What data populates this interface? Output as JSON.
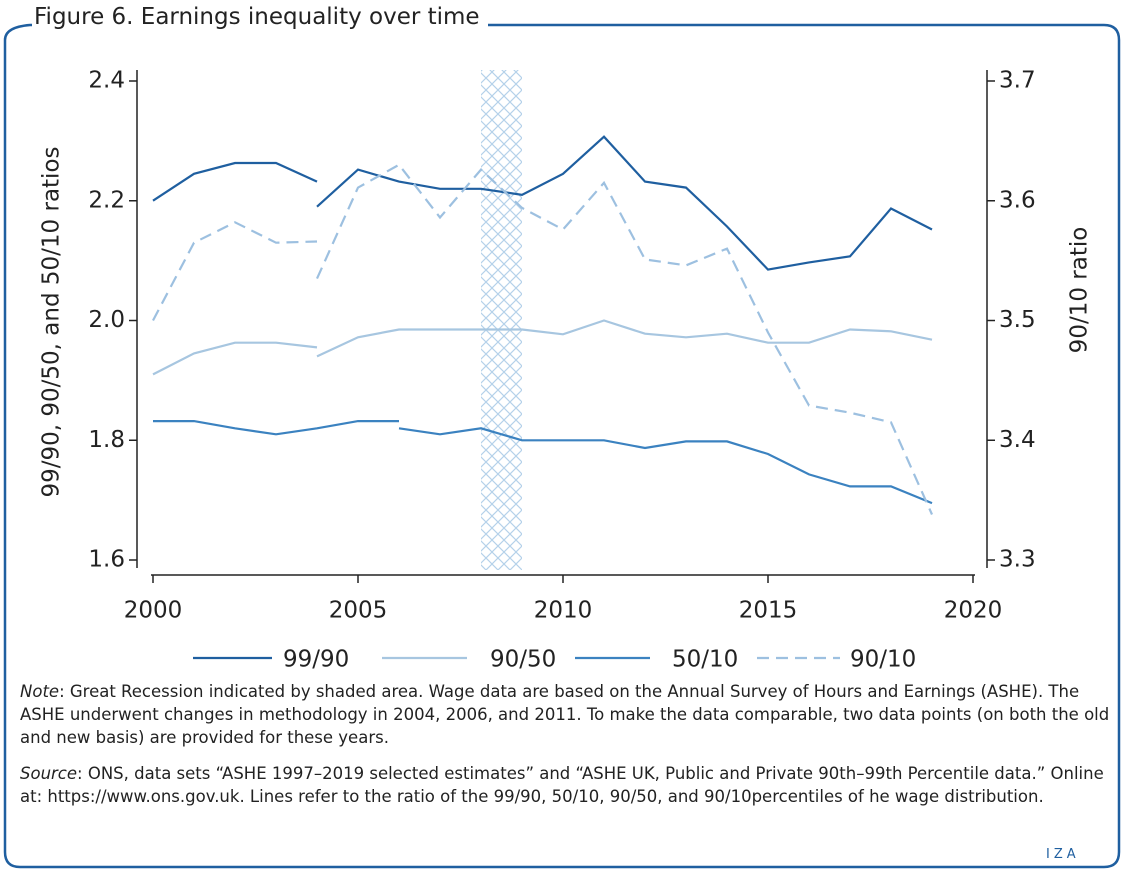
{
  "chart_data": {
    "type": "line",
    "title": "Figure 6. Earnings inequality over time",
    "ylabel": "99/90, 90/50, and 50/10 ratios",
    "y2label": "90/10 ratio",
    "xlim": [
      2000,
      2020
    ],
    "xticks": [
      2000,
      2005,
      2010,
      2015,
      2020
    ],
    "ylim": [
      1.6,
      2.4
    ],
    "yticks": [
      {
        "value": 1.6,
        "label": "1.6"
      },
      {
        "value": 1.8,
        "label": "1.8"
      },
      {
        "value": 2.0,
        "label": "2.0"
      },
      {
        "value": 2.2,
        "label": "2.2"
      },
      {
        "value": 2.4,
        "label": "2.4"
      }
    ],
    "y2lim": [
      3.3,
      3.7
    ],
    "y2ticks": [
      3.3,
      3.4,
      3.5,
      3.6,
      3.7
    ],
    "recession": [
      2008,
      2009
    ],
    "series": [
      {
        "name": "99/90",
        "color": "#1f5fa0",
        "dash": false,
        "x": [
          2000,
          2001,
          2002,
          2003,
          2004,
          null,
          2004,
          2005,
          2006,
          2007,
          2008,
          2009,
          2010,
          2011,
          2012,
          2013,
          2014,
          2015,
          2016,
          2017,
          2018,
          2019
        ],
        "values": [
          2.2,
          2.245,
          2.263,
          2.263,
          2.232,
          null,
          2.19,
          2.252,
          2.232,
          2.22,
          2.22,
          2.21,
          2.245,
          2.307,
          2.232,
          2.222,
          2.157,
          2.085,
          2.097,
          2.107,
          2.187,
          2.152
        ]
      },
      {
        "name": "90/50",
        "color": "#a7c6e0",
        "dash": false,
        "x": [
          2000,
          2001,
          2002,
          2003,
          2004,
          null,
          2004,
          2005,
          2006,
          2007,
          2008,
          2009,
          2010,
          2011,
          2012,
          2013,
          2014,
          2015,
          2016,
          2017,
          2018,
          2019
        ],
        "values": [
          1.91,
          1.945,
          1.963,
          1.963,
          1.955,
          null,
          1.94,
          1.972,
          1.985,
          1.985,
          1.985,
          1.985,
          1.977,
          2.0,
          1.978,
          1.972,
          1.978,
          1.963,
          1.963,
          1.985,
          1.982,
          1.968
        ]
      },
      {
        "name": "50/10",
        "color": "#3b82c0",
        "dash": false,
        "x": [
          2000,
          2001,
          2002,
          2003,
          2004,
          2005,
          2006,
          null,
          2006,
          2007,
          2008,
          2009,
          2010,
          2011,
          2012,
          2013,
          2014,
          2015,
          2016,
          2017,
          2018,
          2019
        ],
        "values": [
          1.832,
          1.832,
          1.82,
          1.81,
          1.82,
          1.832,
          1.832,
          null,
          1.82,
          1.81,
          1.82,
          1.8,
          1.8,
          1.8,
          1.787,
          1.798,
          1.798,
          1.777,
          1.743,
          1.723,
          1.723,
          1.695
        ]
      },
      {
        "name": "90/10",
        "color": "#9dc0e0",
        "dash": true,
        "axis": "y2",
        "x": [
          2000,
          2001,
          2002,
          2003,
          2004,
          null,
          2004,
          2005,
          2006,
          2007,
          2008,
          2009,
          2010,
          2011,
          2012,
          2013,
          2014,
          2015,
          2016,
          2017,
          2018,
          2019
        ],
        "values": [
          3.5,
          3.565,
          3.582,
          3.565,
          3.566,
          null,
          3.535,
          3.611,
          3.63,
          3.586,
          3.626,
          3.594,
          3.576,
          3.615,
          3.551,
          3.546,
          3.56,
          3.49,
          3.429,
          3.423,
          3.415,
          3.338
        ]
      }
    ]
  },
  "note": {
    "label": "Note",
    "text": ": Great Recession indicated by shaded area. Wage data are based on the Annual Survey of Hours and Earnings (ASHE). The ASHE underwent changes in methodology in 2004, 2006, and 2011. To make the data comparable, two data points (on both the old and new basis) are provided for these years."
  },
  "source": {
    "label": "Source",
    "text": ": ONS, data sets “ASHE 1997–2019 selected estimates” and “ASHE UK, Public and Private 90th–99th Percentile data.” Online at: https://www.ons.gov.uk. Lines refer to the ratio of the 99/90, 50/10, 90/50, and 90/10percentiles of he wage distribution."
  },
  "logo": "IZA"
}
